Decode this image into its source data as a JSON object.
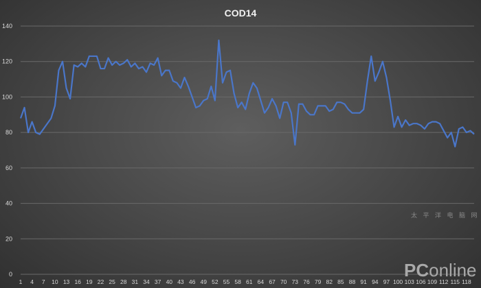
{
  "chart_data": {
    "type": "line",
    "title": "COD14",
    "xlabel": "",
    "ylabel": "",
    "ylim": [
      0,
      140
    ],
    "yticks": [
      0,
      20,
      40,
      60,
      80,
      100,
      120,
      140
    ],
    "grid": true,
    "legend": "none",
    "x_tick_labels": [
      "1",
      "4",
      "7",
      "10",
      "13",
      "16",
      "19",
      "22",
      "25",
      "28",
      "31",
      "34",
      "37",
      "40",
      "43",
      "46",
      "49",
      "52",
      "55",
      "58",
      "61",
      "64",
      "67",
      "70",
      "73",
      "76",
      "79",
      "82",
      "85",
      "88",
      "91",
      "94",
      "97",
      "100",
      "103",
      "106",
      "109",
      "112",
      "115",
      "118"
    ],
    "series": [
      {
        "color": "#4a76c9",
        "values": [
          88,
          94,
          80,
          86,
          80,
          79,
          82,
          85,
          88,
          95,
          115,
          120,
          105,
          99,
          118,
          117,
          119,
          117,
          123,
          123,
          123,
          116,
          116,
          122,
          118,
          120,
          118,
          119,
          121,
          117,
          119,
          116,
          117,
          114,
          119,
          118,
          122,
          112,
          115,
          115,
          109,
          108,
          105,
          111,
          106,
          100,
          94,
          95,
          98,
          99,
          106,
          98,
          132,
          108,
          114,
          115,
          102,
          94,
          97,
          93,
          102,
          108,
          105,
          98,
          91,
          94,
          99,
          95,
          88,
          97,
          97,
          91,
          73,
          96,
          96,
          92,
          90,
          90,
          95,
          95,
          95,
          92,
          93,
          97,
          97,
          96,
          93,
          91,
          91,
          91,
          93,
          109,
          123,
          109,
          114,
          120,
          111,
          98,
          83,
          89,
          83,
          87,
          84,
          85,
          85,
          84,
          82,
          85,
          86,
          86,
          85,
          81,
          77,
          80,
          72,
          82,
          83,
          80,
          81,
          79
        ]
      }
    ]
  },
  "watermark": {
    "brand_bold": "PC",
    "brand_light": "online",
    "chinese": "太 平 洋 电 脑 网"
  }
}
